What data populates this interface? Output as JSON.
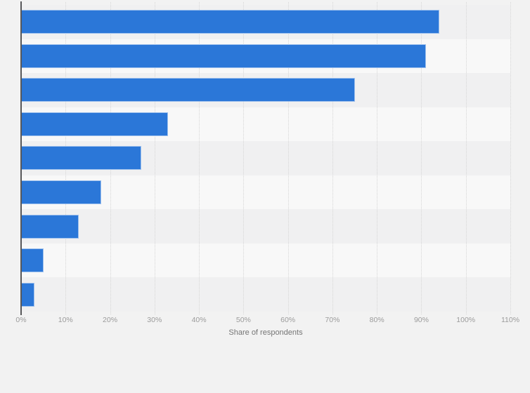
{
  "chart_data": {
    "type": "bar",
    "orientation": "horizontal",
    "title": "",
    "xlabel": "Share of respondents",
    "ylabel": "",
    "xlim": [
      0,
      110
    ],
    "x_ticks": [
      "0%",
      "10%",
      "20%",
      "30%",
      "40%",
      "50%",
      "60%",
      "70%",
      "80%",
      "90%",
      "100%",
      "110%"
    ],
    "grid": "vertical-dotted",
    "legend": "none",
    "values": [
      94,
      91,
      75,
      33,
      27,
      18,
      13,
      5,
      3
    ]
  },
  "colors": {
    "bar": "#2b77d8",
    "page_background": "#f2f2f2",
    "stripe_dark": "#f0f0f1",
    "stripe_light": "#f8f8f8",
    "gridline": "#d6d6d6",
    "axis_line": "#58585a",
    "tick_text": "#9b9b9b",
    "axis_title_text": "#757575"
  }
}
